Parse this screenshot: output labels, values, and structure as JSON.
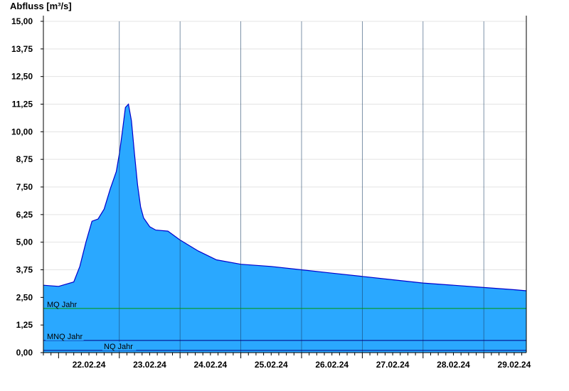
{
  "chart_data": {
    "type": "area",
    "ylabel": "Abfluss [m³/s]",
    "ylim": [
      0,
      15
    ],
    "grid": true,
    "y_ticks": [
      "0,00",
      "1,25",
      "2,50",
      "3,75",
      "5,00",
      "6,25",
      "7,50",
      "8,75",
      "10,00",
      "11,25",
      "12,50",
      "13,75",
      "15,00"
    ],
    "x_ticks": [
      "22.02.24",
      "23.02.24",
      "24.02.24",
      "25.02.24",
      "26.02.24",
      "27.02.24",
      "28.02.24",
      "29.02.24"
    ],
    "x_range_days": [
      -0.25,
      7.7
    ],
    "series": [
      {
        "x": [
          -0.25,
          0.0,
          0.25,
          0.35,
          0.45,
          0.55,
          0.65,
          0.75,
          0.85,
          0.95,
          1.0,
          1.05,
          1.1,
          1.15,
          1.2,
          1.25,
          1.3,
          1.35,
          1.4,
          1.5,
          1.6,
          1.8,
          2.0,
          2.3,
          2.6,
          3.0,
          3.5,
          4.0,
          4.5,
          5.0,
          5.5,
          6.0,
          6.5,
          7.0,
          7.5,
          7.7
        ],
        "values": [
          3.05,
          3.0,
          3.2,
          3.9,
          5.0,
          5.95,
          6.05,
          6.5,
          7.4,
          8.2,
          9.0,
          10.0,
          11.1,
          11.25,
          10.5,
          9.0,
          7.6,
          6.6,
          6.1,
          5.7,
          5.55,
          5.5,
          5.1,
          4.6,
          4.2,
          4.0,
          3.9,
          3.75,
          3.6,
          3.45,
          3.3,
          3.15,
          3.05,
          2.95,
          2.85,
          2.8
        ],
        "color": "#2aa8ff",
        "stroke": "#0000cc"
      }
    ],
    "reference_lines": [
      {
        "label": "MQ Jahr",
        "value": 2.0,
        "color": "#009900"
      },
      {
        "label": "MNQ Jahr",
        "value": 0.55,
        "color": "#000080"
      },
      {
        "label": "NQ Jahr",
        "value": 0.1,
        "color": "#000080"
      }
    ]
  }
}
